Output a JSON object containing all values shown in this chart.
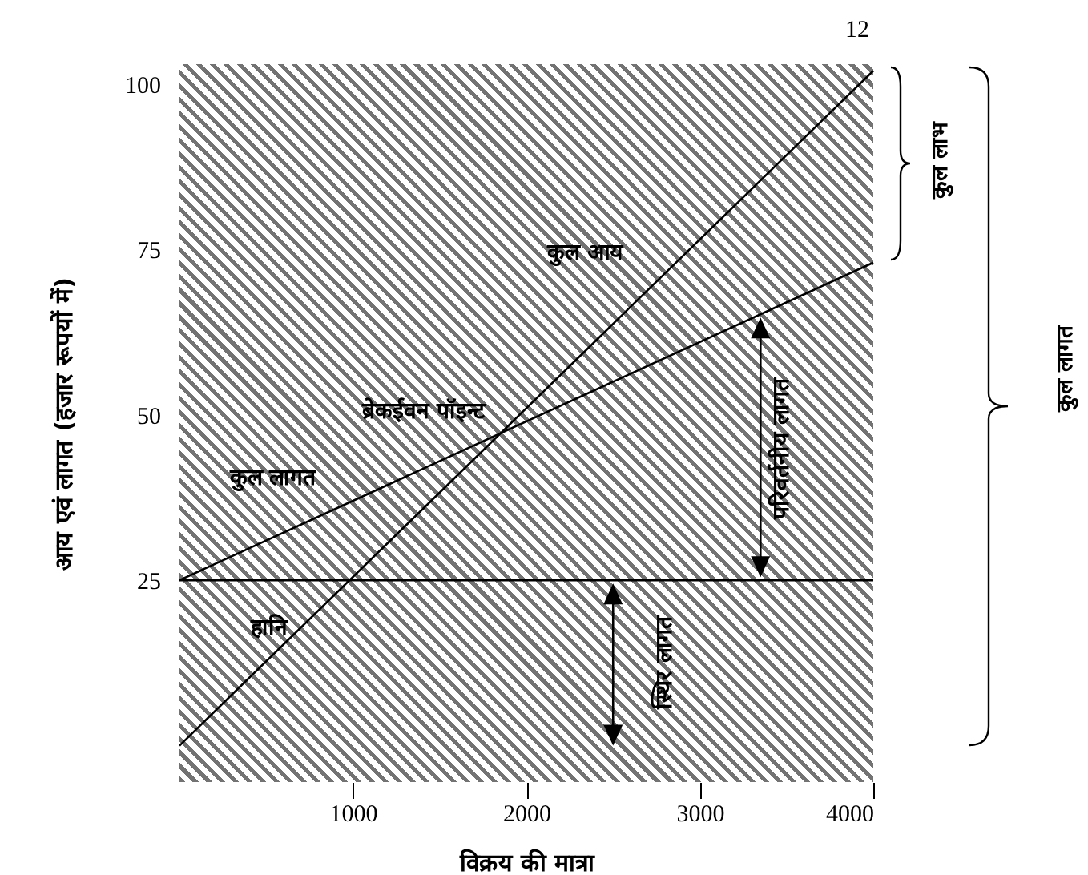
{
  "chart_data": {
    "type": "line",
    "xlabel": "विक्रय की मात्रा",
    "ylabel": "आय एवं लागत (हजार रूपयों में)",
    "x": [
      0,
      4000
    ],
    "xlim": [
      0,
      4000
    ],
    "xticks": [
      1000,
      2000,
      3000,
      4000
    ],
    "ylim": [
      -5.5,
      103
    ],
    "yticks": [
      25,
      50,
      75,
      100
    ],
    "series": [
      {
        "name": "कुल आय",
        "color": "#000000",
        "values": [
          0,
          102
        ]
      },
      {
        "name": "कुल लागत",
        "color": "#000000",
        "values": [
          25,
          73
        ]
      }
    ],
    "ref_lines": [
      {
        "axis": "y",
        "value": 25,
        "label": "स्थिर लागत",
        "color": "#000000"
      }
    ],
    "annotations": [
      "12",
      {
        "text": "ब्रेकईवन पॉइन्ट",
        "x": 1850,
        "y": 47
      },
      "हानि",
      "परिवर्तनीय लागत",
      "कुल लाभ",
      "कुल लागत"
    ],
    "grid": false
  }
}
